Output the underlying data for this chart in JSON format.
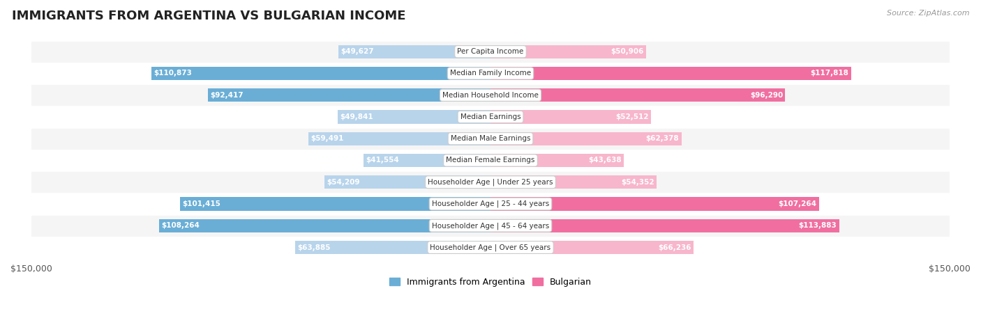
{
  "title": "IMMIGRANTS FROM ARGENTINA VS BULGARIAN INCOME",
  "source": "Source: ZipAtlas.com",
  "categories": [
    "Per Capita Income",
    "Median Family Income",
    "Median Household Income",
    "Median Earnings",
    "Median Male Earnings",
    "Median Female Earnings",
    "Householder Age | Under 25 years",
    "Householder Age | 25 - 44 years",
    "Householder Age | 45 - 64 years",
    "Householder Age | Over 65 years"
  ],
  "argentina_values": [
    49627,
    110873,
    92417,
    49841,
    59491,
    41554,
    54209,
    101415,
    108264,
    63885
  ],
  "bulgarian_values": [
    50906,
    117818,
    96290,
    52512,
    62378,
    43638,
    54352,
    107264,
    113883,
    66236
  ],
  "argentina_color_light": "#b8d4eb",
  "argentina_color_dark": "#6aaed6",
  "bulgarian_color_light": "#f7b6cb",
  "bulgarian_color_dark": "#f06fa0",
  "argentina_text_inside": "#ffffff",
  "argentina_text_outside": "#555555",
  "bulgarian_text_inside": "#ffffff",
  "bulgarian_text_outside": "#555555",
  "max_value": 150000,
  "row_bg_light": "#f5f5f5",
  "row_bg_white": "#ffffff",
  "background_color": "#ffffff",
  "legend_argentina_color": "#6aaed6",
  "legend_bulgarian_color": "#f06fa0",
  "inside_threshold": 37000
}
